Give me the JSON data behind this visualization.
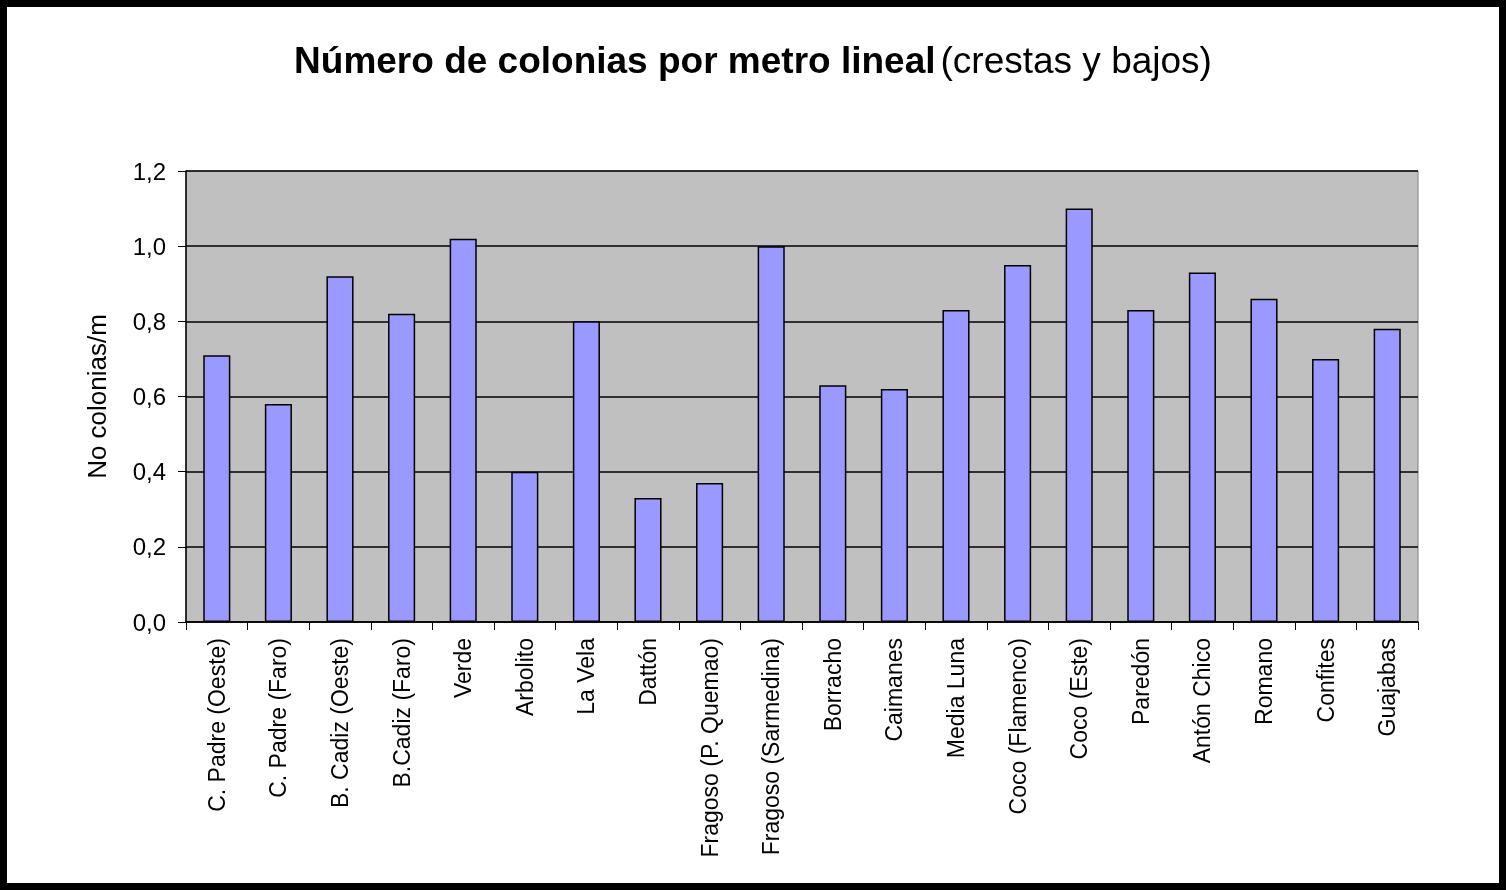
{
  "chart_data": {
    "type": "bar",
    "title": "Número de colonias por metro lineal",
    "subtitle": "(crestas y bajos)",
    "ylabel": "No colonias/m",
    "categories": [
      "C. Padre (Oeste)",
      "C. Padre (Faro)",
      "B. Cadiz (Oeste)",
      "B.Cadiz (Faro)",
      "Verde",
      "Arbolito",
      "La Vela",
      "Dattón",
      "Fragoso (P. Quemao)",
      "Fragoso (Sarmedina)",
      "Borracho",
      "Caimanes",
      "Media Luna",
      "Coco (Flamenco)",
      "Coco (Este)",
      "Paredón",
      "Antón Chico",
      "Romano",
      "Confites",
      "Guajabas"
    ],
    "values": [
      0.71,
      0.58,
      0.92,
      0.82,
      1.02,
      0.4,
      0.8,
      0.33,
      0.37,
      1.0,
      0.63,
      0.62,
      0.83,
      0.95,
      1.1,
      0.83,
      0.93,
      0.86,
      0.7,
      0.78
    ],
    "color": "#9999ff",
    "ylim": [
      0,
      1.2
    ],
    "yticks": [
      {
        "value": 0,
        "label": "0,0"
      },
      {
        "value": 0.2,
        "label": "0,2"
      },
      {
        "value": 0.4,
        "label": "0,4"
      },
      {
        "value": 0.6,
        "label": "0,6"
      },
      {
        "value": 0.8,
        "label": "0,8"
      },
      {
        "value": 1.0,
        "label": "1,0"
      },
      {
        "value": 1.2,
        "label": "1,2"
      }
    ],
    "grid": "y"
  }
}
